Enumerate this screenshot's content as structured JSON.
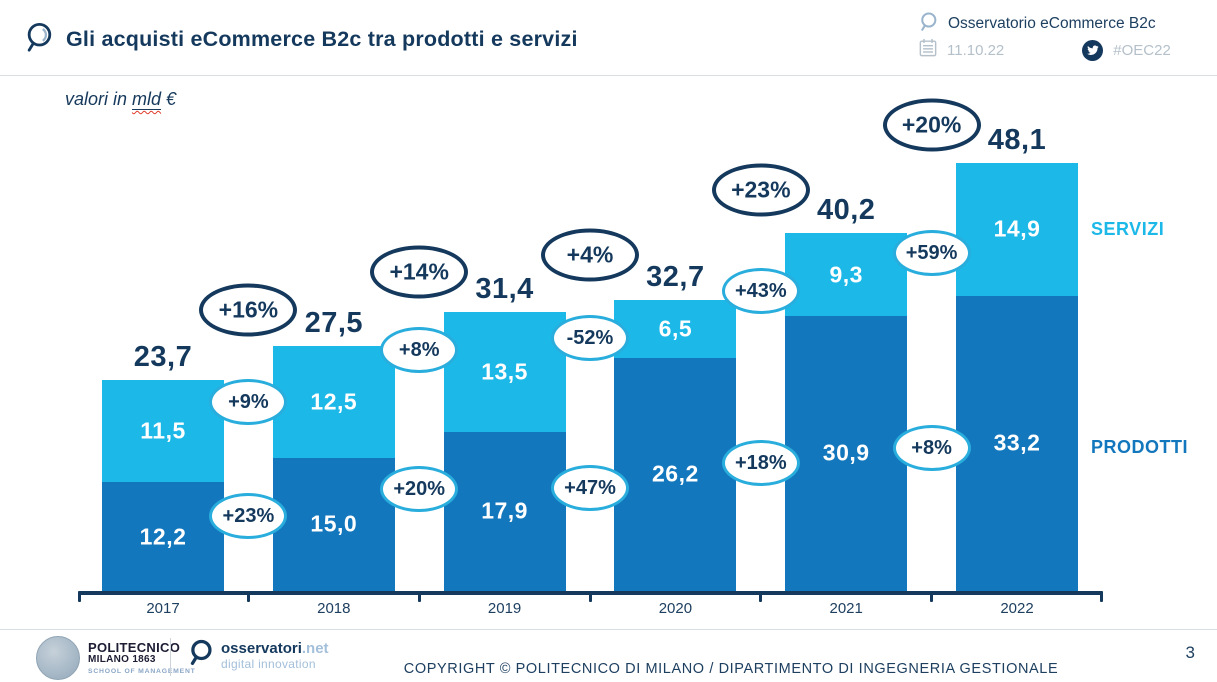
{
  "header": {
    "title": "Gli acquisti eCommerce B2c tra prodotti e servizi",
    "brand": "Osservatorio eCommerce B2c",
    "date": "11.10.22",
    "hashtag": "#OEC22"
  },
  "subtitle": {
    "prefix": "valori in ",
    "unit": "mld",
    "suffix": " €"
  },
  "chart_data": {
    "type": "bar",
    "stacked": true,
    "title": "Gli acquisti eCommerce B2c tra prodotti e servizi",
    "unit_note": "valori in mld €",
    "categories": [
      "2017",
      "2018",
      "2019",
      "2020",
      "2021",
      "2022"
    ],
    "series": [
      {
        "name": "PRODOTTI",
        "color": "#1377bd",
        "values": [
          12.2,
          15.0,
          17.9,
          26.2,
          30.9,
          33.2
        ],
        "labels": [
          "12,2",
          "15,0",
          "17,9",
          "26,2",
          "30,9",
          "33,2"
        ],
        "growth": [
          "+23%",
          "+20%",
          "+47%",
          "+18%",
          "+8%"
        ]
      },
      {
        "name": "SERVIZI",
        "color": "#1cb8e8",
        "values": [
          11.5,
          12.5,
          13.5,
          6.5,
          9.3,
          14.9
        ],
        "labels": [
          "11,5",
          "12,5",
          "13,5",
          "6,5",
          "9,3",
          "14,9"
        ],
        "growth": [
          "+9%",
          "+8%",
          "-52%",
          "+43%",
          "+59%"
        ]
      }
    ],
    "totals": {
      "values": [
        23.7,
        27.5,
        31.4,
        32.7,
        40.2,
        48.1
      ],
      "labels": [
        "23,7",
        "27,5",
        "31,4",
        "32,7",
        "40,2",
        "48,1"
      ],
      "growth": [
        "+16%",
        "+14%",
        "+4%",
        "+23%",
        "+20%"
      ]
    },
    "ylim": [
      0,
      50
    ],
    "grid": false,
    "legend_position": "right",
    "axis_color": "#14395d"
  },
  "legend": {
    "servizi": "SERVIZI",
    "prodotti": "PRODOTTI"
  },
  "colors": {
    "navy": "#14395d",
    "servizi": "#1cb8e8",
    "prodotti": "#1377bd",
    "light_oval_border": "#29addc",
    "muted_gray": "#b4c0ca"
  },
  "footer": {
    "politecnico": {
      "line1": "POLITECNICO",
      "line2": "MILANO 1863",
      "line3": "SCHOOL OF MANAGEMENT"
    },
    "osservatori": {
      "brand": "osservatori",
      "tld": ".net",
      "tagline": "digital innovation"
    },
    "copyright": "COPYRIGHT © POLITECNICO DI MILANO / DIPARTIMENTO DI INGEGNERIA GESTIONALE",
    "page": "3"
  }
}
